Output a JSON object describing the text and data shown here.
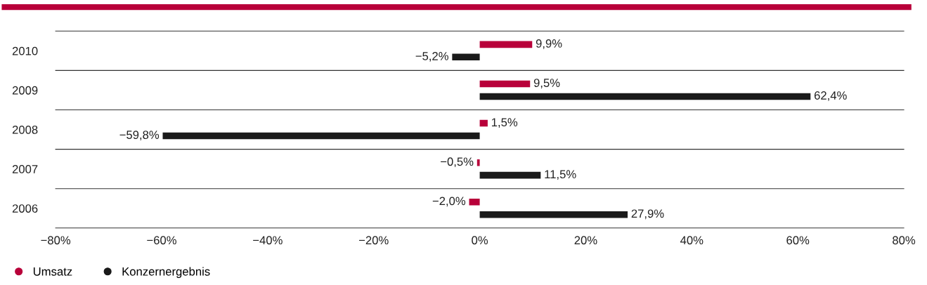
{
  "chart_data": {
    "type": "bar",
    "orientation": "horizontal",
    "categories": [
      "2010",
      "2009",
      "2008",
      "2007",
      "2006"
    ],
    "series": [
      {
        "name": "Umsatz",
        "color": "#b8003a",
        "values": [
          9.9,
          9.5,
          1.5,
          -0.5,
          -2.0
        ],
        "value_labels": [
          "9,9%",
          "9,5%",
          "1,5%",
          "−0,5%",
          "−2,0%"
        ]
      },
      {
        "name": "Konzernergebnis",
        "color": "#1a1a1a",
        "values": [
          -5.2,
          62.4,
          -59.8,
          11.5,
          27.9
        ],
        "value_labels": [
          "−5,2%",
          "62,4%",
          "−59,8%",
          "11,5%",
          "27,9%"
        ]
      }
    ],
    "xlim": [
      -80,
      80
    ],
    "xticks": [
      {
        "value": -80,
        "label": "−80%"
      },
      {
        "value": -60,
        "label": "−60%"
      },
      {
        "value": -40,
        "label": "−40%"
      },
      {
        "value": -20,
        "label": "−20%"
      },
      {
        "value": 0,
        "label": "0%"
      },
      {
        "value": 20,
        "label": "20%"
      },
      {
        "value": 40,
        "label": "40%"
      },
      {
        "value": 60,
        "label": "60%"
      },
      {
        "value": 80,
        "label": "80%"
      }
    ],
    "grid": "y",
    "legend": "bottom left"
  }
}
